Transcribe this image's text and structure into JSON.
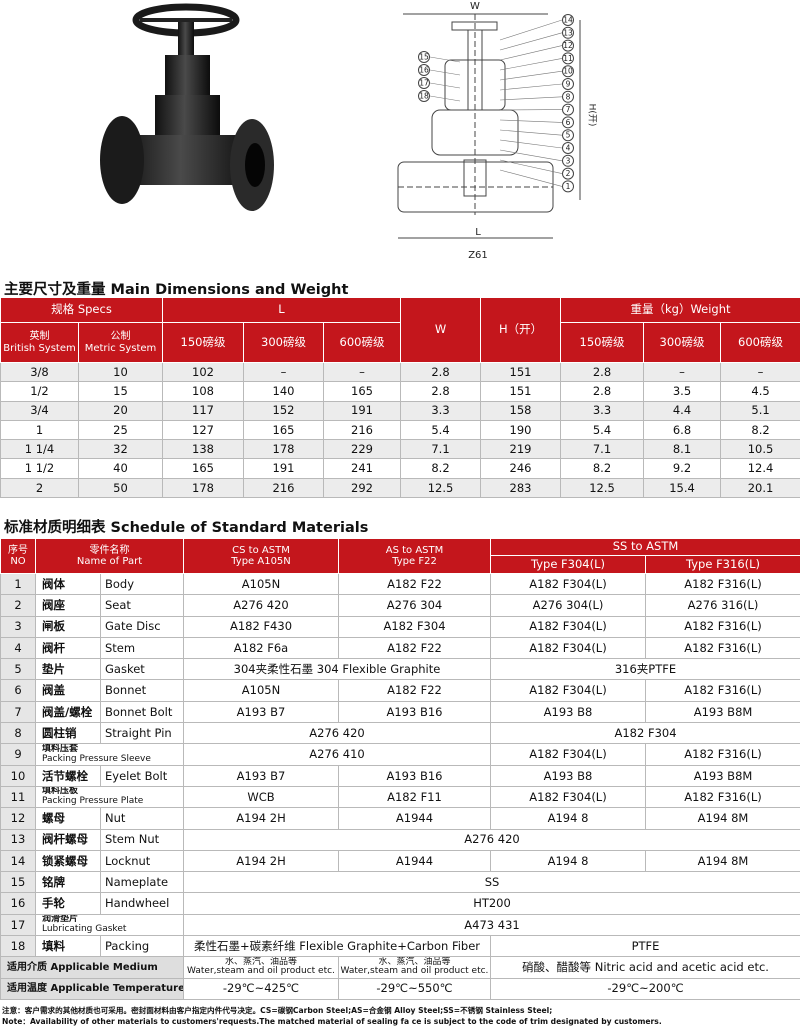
{
  "drawing": {
    "width_label": "W",
    "height_label": "H(开)",
    "length_label": "L",
    "model": "Z61",
    "parts_right": [
      "14",
      "13",
      "12",
      "11",
      "10",
      "9",
      "8",
      "7",
      "6",
      "5",
      "4",
      "3",
      "2",
      "1"
    ],
    "parts_left": [
      "15",
      "16",
      "17",
      "18"
    ]
  },
  "dimensions": {
    "title": "主要尺寸及重量 Main Dimensions and Weight",
    "header": {
      "specs": "规格 Specs",
      "length": "L",
      "width": "W",
      "height": "H（开）",
      "weight": "重量（kg）Weight",
      "british": [
        "英制",
        "British System"
      ],
      "metric": [
        "公制",
        "Metric System"
      ],
      "length_classes": [
        "150磅级",
        "300磅级",
        "600磅级"
      ],
      "weight_classes": [
        "150磅级",
        "300磅级",
        "600磅级"
      ]
    },
    "rows": [
      [
        "3/8",
        "10",
        "102",
        "–",
        "–",
        "2.8",
        "151",
        "2.8",
        "–",
        "–"
      ],
      [
        "1/2",
        "15",
        "108",
        "140",
        "165",
        "2.8",
        "151",
        "2.8",
        "3.5",
        "4.5"
      ],
      [
        "3/4",
        "20",
        "117",
        "152",
        "191",
        "3.3",
        "158",
        "3.3",
        "4.4",
        "5.1"
      ],
      [
        "1",
        "25",
        "127",
        "165",
        "216",
        "5.4",
        "190",
        "5.4",
        "6.8",
        "8.2"
      ],
      [
        "1 1/4",
        "32",
        "138",
        "178",
        "229",
        "7.1",
        "219",
        "7.1",
        "8.1",
        "10.5"
      ],
      [
        "1 1/2",
        "40",
        "165",
        "191",
        "241",
        "8.2",
        "246",
        "8.2",
        "9.2",
        "12.4"
      ],
      [
        "2",
        "50",
        "178",
        "216",
        "292",
        "12.5",
        "283",
        "12.5",
        "15.4",
        "20.1"
      ]
    ]
  },
  "materials": {
    "title": "标准材质明细表 Schedule of Standard Materials",
    "header": {
      "no": [
        "序号",
        "NO"
      ],
      "part": [
        "零件名称",
        "Name of Part"
      ],
      "cs": [
        "CS to ASTM",
        "Type A105N"
      ],
      "as": [
        "AS to ASTM",
        "Type F22"
      ],
      "ss": "SS to ASTM",
      "f304": "Type F304(L)",
      "f316": "Type F316(L)"
    },
    "rows": [
      {
        "no": "1",
        "cn": "阀体",
        "en": "Body",
        "cs": "A105N",
        "as": "A182 F22",
        "f304": "A182 F304(L)",
        "f316": "A182 F316(L)"
      },
      {
        "no": "2",
        "cn": "阀座",
        "en": "Seat",
        "cs": "A276 420",
        "as": "A276 304",
        "f304": "A276 304(L)",
        "f316": "A276 316(L)"
      },
      {
        "no": "3",
        "cn": "闸板",
        "en": "Gate Disc",
        "cs": "A182 F430",
        "as": "A182 F304",
        "f304": "A182 F304(L)",
        "f316": "A182 F316(L)"
      },
      {
        "no": "4",
        "cn": "阀杆",
        "en": "Stem",
        "cs": "A182 F6a",
        "as": "A182 F22",
        "f304": "A182 F304(L)",
        "f316": "A182 F316(L)"
      },
      {
        "no": "5",
        "cn": "垫片",
        "en": "Gasket",
        "cs_as": "304夹柔性石墨  304 Flexible Graphite",
        "ss": "316夹PTFE"
      },
      {
        "no": "6",
        "cn": "阀盖",
        "en": "Bonnet",
        "cs": "A105N",
        "as": "A182 F22",
        "f304": "A182 F304(L)",
        "f316": "A182 F316(L)"
      },
      {
        "no": "7",
        "cn": "阀盖/螺栓",
        "en": "Bonnet Bolt",
        "cs": "A193 B7",
        "as": "A193 B16",
        "f304": "A193 B8",
        "f316": "A193 B8M"
      },
      {
        "no": "8",
        "cn": "圆柱销",
        "en": "Straight Pin",
        "cs_as": "A276 420",
        "ss": "A182 F304"
      },
      {
        "no": "9",
        "cn": "填料压套",
        "en": "Packing Pressure Sleeve",
        "cs_as": "A276 410",
        "f304": "A182 F304(L)",
        "f316": "A182 F316(L)"
      },
      {
        "no": "10",
        "cn": "活节螺栓",
        "en": "Eyelet Bolt",
        "cs": "A193 B7",
        "as": "A193 B16",
        "f304": "A193 B8",
        "f316": "A193 B8M"
      },
      {
        "no": "11",
        "cn": "填料压板",
        "en": "Packing Pressure Plate",
        "cs": "WCB",
        "as": "A182 F11",
        "f304": "A182 F304(L)",
        "f316": "A182 F316(L)"
      },
      {
        "no": "12",
        "cn": "螺母",
        "en": "Nut",
        "cs": "A194 2H",
        "as": "A1944",
        "f304": "A194 8",
        "f316": "A194 8M"
      },
      {
        "no": "13",
        "cn": "阀杆螺母",
        "en": "Stem Nut",
        "all": "A276 420"
      },
      {
        "no": "14",
        "cn": "锁紧螺母",
        "en": "Locknut",
        "cs": "A194 2H",
        "as": "A1944",
        "f304": "A194 8",
        "f316": "A194 8M"
      },
      {
        "no": "15",
        "cn": "铭牌",
        "en": "Nameplate",
        "all": "SS"
      },
      {
        "no": "16",
        "cn": "手轮",
        "en": "Handwheel",
        "all": "HT200"
      },
      {
        "no": "17",
        "cn": "润滑垫片",
        "en": "Lubricating Gasket",
        "all": "A473 431"
      },
      {
        "no": "18",
        "cn": "填料",
        "en": "Packing",
        "cs_as": "柔性石墨+碳素纤维 Flexible Graphite+Carbon Fiber",
        "ss": "PTFE"
      }
    ],
    "usage": [
      {
        "label": "适用介质 Applicable Medium",
        "cs": [
          "水、蒸汽、油品等",
          "Water,steam and oil product etc."
        ],
        "as": [
          "水、蒸汽、油品等",
          "Water,steam and oil product etc."
        ],
        "ss": "硝酸、醋酸等 Nitric acid and acetic acid etc."
      },
      {
        "label": "适用温度 Applicable Temperature",
        "cs": "-29℃~425℃",
        "as": "-29℃~550℃",
        "ss": "-29℃~200℃"
      }
    ]
  },
  "notes": [
    "注意：客户需求的其他材质也可采用。密封面材料由客户指定内件代号决定。CS=碳钢Carbon Steel;AS=合金钢 Alloy Steel;SS=不锈钢 Stainless Steel;",
    "Note：Availability of other materials to customers'requests.The matched material of sealing fa ce is subject to the code of trim designated by customers."
  ]
}
